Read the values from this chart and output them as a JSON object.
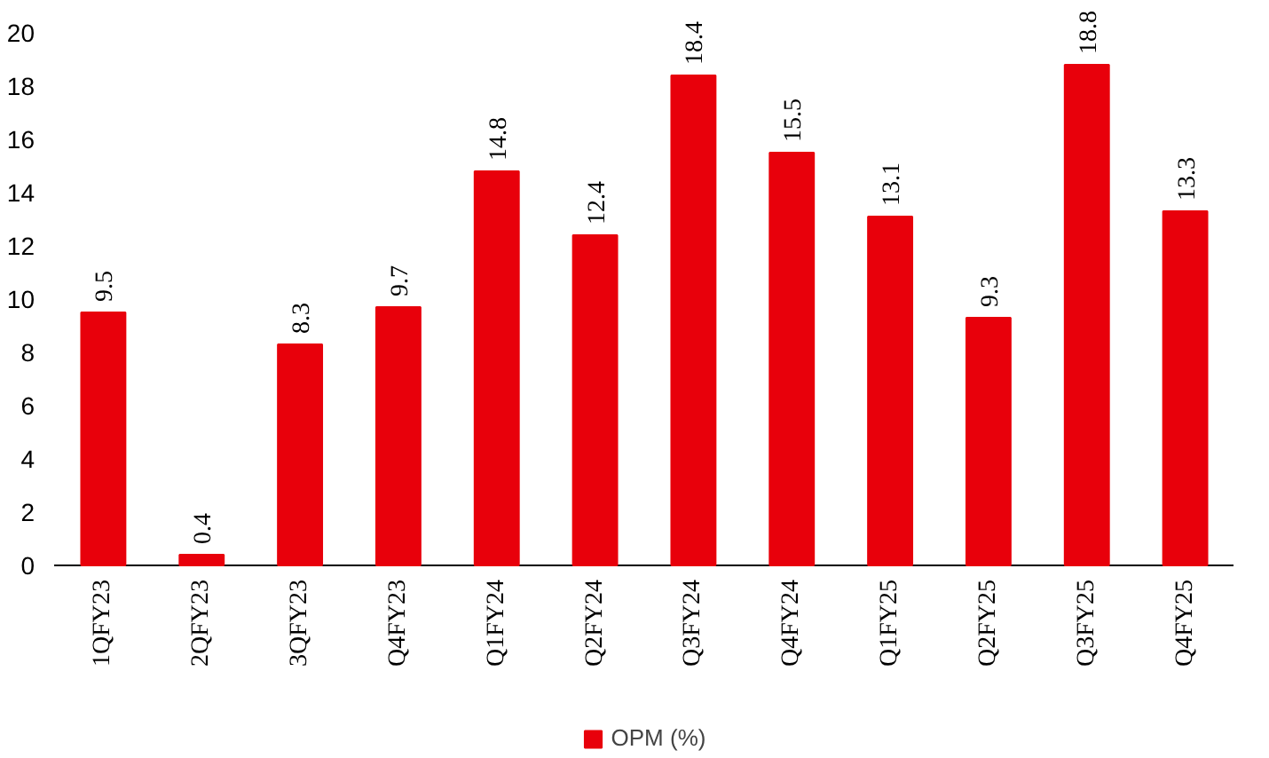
{
  "chart_data": {
    "type": "bar",
    "categories": [
      "1QFY23",
      "2QFY23",
      "3QFY23",
      "Q4FY23",
      "Q1FY24",
      "Q2FY24",
      "Q3FY24",
      "Q4FY24",
      "Q1FY25",
      "Q2FY25",
      "Q3FY25",
      "Q4FY25"
    ],
    "series": [
      {
        "name": "OPM (%)",
        "color": "#e8000b",
        "values": [
          9.5,
          0.4,
          8.3,
          9.7,
          14.8,
          12.4,
          18.4,
          15.5,
          13.1,
          9.3,
          18.8,
          13.3
        ]
      }
    ],
    "ylim": [
      0,
      20
    ],
    "yticks": [
      0,
      2,
      4,
      6,
      8,
      10,
      12,
      14,
      16,
      18,
      20
    ],
    "grid": false,
    "legend": "bottom",
    "data_labels": true
  }
}
